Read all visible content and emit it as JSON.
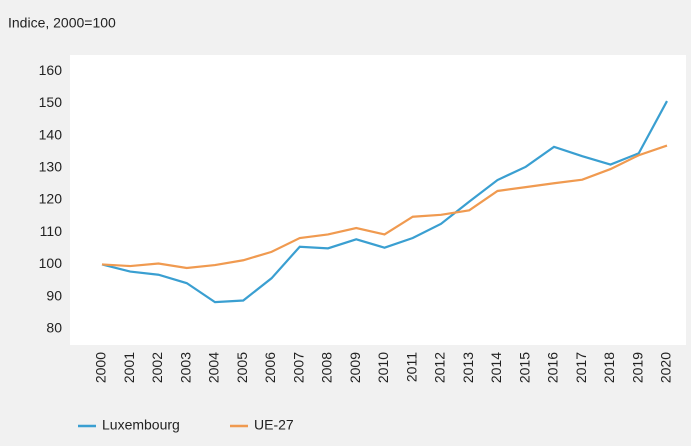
{
  "chart_data": {
    "type": "line",
    "title": "Indice, 2000=100",
    "categories": [
      "2000",
      "2001",
      "2002",
      "2003",
      "2004",
      "2005",
      "2006",
      "2007",
      "2008",
      "2009",
      "2010",
      "2011",
      "2012",
      "2013",
      "2014",
      "2015",
      "2016",
      "2017",
      "2018",
      "2019",
      "2020"
    ],
    "series": [
      {
        "name": "Luxembourg",
        "color": "#3a9fd1",
        "values": [
          100,
          97.8,
          96.8,
          94.2,
          88.3,
          88.8,
          95.7,
          105.5,
          105,
          107.8,
          105.2,
          108.2,
          112.6,
          119.5,
          126.2,
          130.3,
          136.5,
          133.6,
          131,
          134.5,
          150.7
        ]
      },
      {
        "name": "UE-27",
        "color": "#f09a50",
        "values": [
          100,
          99.5,
          100.3,
          98.9,
          99.8,
          101.3,
          103.9,
          108.2,
          109.3,
          111.3,
          109.3,
          114.8,
          115.4,
          116.8,
          122.8,
          124,
          125.2,
          126.3,
          129.6,
          133.9,
          136.9
        ]
      }
    ],
    "ylim": [
      75,
      165
    ],
    "yticks": [
      80,
      90,
      100,
      110,
      120,
      130,
      140,
      150,
      160
    ],
    "grid": false,
    "legend": "bottom-left"
  }
}
